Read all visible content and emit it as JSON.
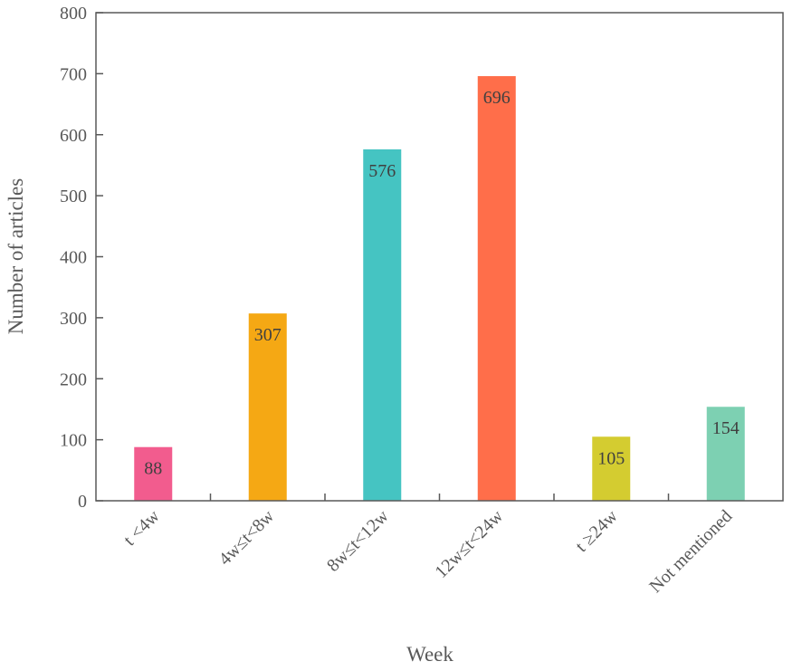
{
  "chart_data": {
    "type": "bar",
    "categories": [
      "t <4w",
      "4w≤t<8w",
      "8w≤t<12w",
      "12w≤t<24w",
      "t ≥24w",
      "Not mentioned"
    ],
    "values": [
      88,
      307,
      576,
      696,
      105,
      154
    ],
    "data_labels": [
      "88",
      "307",
      "576",
      "696",
      "105",
      "154"
    ],
    "colors": [
      "#f25c8e",
      "#f5a814",
      "#45c4c2",
      "#ff6e4a",
      "#d4cc30",
      "#7dd0b2"
    ],
    "title": "",
    "xlabel": "Week",
    "ylabel": "Number of articles",
    "ylim": [
      0,
      800
    ],
    "yticks": [
      0,
      100,
      200,
      300,
      400,
      500,
      600,
      700,
      800
    ],
    "ytick_labels": [
      "0",
      "100",
      "200",
      "300",
      "400",
      "500",
      "600",
      "700",
      "800"
    ],
    "grid": false,
    "legend": "none"
  }
}
